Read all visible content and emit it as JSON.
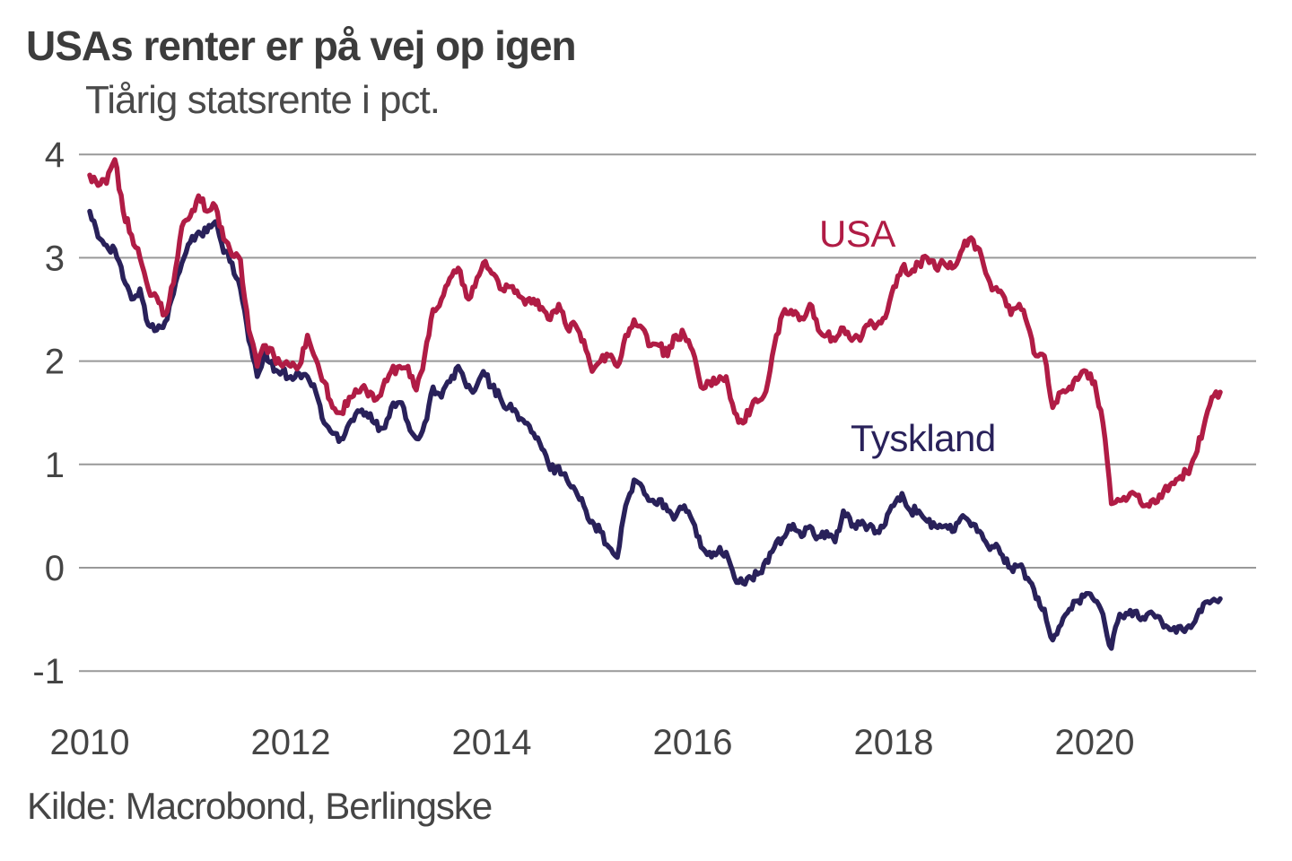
{
  "title": "USAs renter er på vej op igen",
  "subtitle": "Tiårig statsrente i pct.",
  "source": "Kilde: Macrobond, Berlingske",
  "colors": {
    "usa": "#B01C45",
    "germany": "#29215A",
    "grid": "#999999",
    "axis_text": "#454545"
  },
  "chart_data": {
    "type": "line",
    "title": "USAs renter er på vej op igen",
    "subtitle": "Tiårig statsrente i pct.",
    "xlabel": "",
    "ylabel": "Tiårig statsrente i pct.",
    "x_start_year": 2010,
    "x_points_per_year": 12,
    "x_end_year": 2021.25,
    "x_ticks": [
      2010,
      2012,
      2014,
      2016,
      2018,
      2020
    ],
    "y_ticks": [
      4,
      3,
      2,
      1,
      0,
      -1
    ],
    "ylim": [
      -1.35,
      4.35
    ],
    "grid": "horizontal",
    "legend_position": "inline-labels",
    "series": [
      {
        "name": "Tyskland",
        "color": "#29215A",
        "values": [
          3.45,
          3.2,
          3.12,
          3.08,
          2.8,
          2.6,
          2.7,
          2.35,
          2.3,
          2.38,
          2.65,
          2.95,
          3.15,
          3.25,
          3.25,
          3.35,
          3.05,
          2.95,
          2.7,
          2.2,
          1.85,
          2.1,
          1.9,
          1.9,
          1.85,
          1.88,
          1.85,
          1.7,
          1.4,
          1.3,
          1.25,
          1.4,
          1.52,
          1.5,
          1.4,
          1.35,
          1.55,
          1.6,
          1.4,
          1.25,
          1.4,
          1.75,
          1.65,
          1.8,
          1.95,
          1.75,
          1.72,
          1.9,
          1.75,
          1.65,
          1.55,
          1.5,
          1.4,
          1.3,
          1.15,
          0.95,
          0.98,
          0.85,
          0.75,
          0.6,
          0.45,
          0.35,
          0.2,
          0.1,
          0.6,
          0.85,
          0.78,
          0.65,
          0.66,
          0.55,
          0.5,
          0.6,
          0.45,
          0.2,
          0.15,
          0.15,
          0.15,
          -0.1,
          -0.15,
          -0.1,
          -0.05,
          0.05,
          0.25,
          0.3,
          0.42,
          0.3,
          0.4,
          0.3,
          0.35,
          0.25,
          0.55,
          0.4,
          0.42,
          0.4,
          0.35,
          0.42,
          0.6,
          0.72,
          0.55,
          0.55,
          0.45,
          0.4,
          0.4,
          0.35,
          0.48,
          0.45,
          0.35,
          0.25,
          0.2,
          0.12,
          0.0,
          0.02,
          -0.1,
          -0.3,
          -0.4,
          -0.7,
          -0.55,
          -0.4,
          -0.32,
          -0.25,
          -0.32,
          -0.45,
          -0.78,
          -0.45,
          -0.45,
          -0.42,
          -0.5,
          -0.45,
          -0.52,
          -0.6,
          -0.57,
          -0.58,
          -0.52,
          -0.35,
          -0.32,
          -0.3
        ]
      },
      {
        "name": "USA",
        "color": "#B01C45",
        "values": [
          3.8,
          3.7,
          3.72,
          3.95,
          3.45,
          3.22,
          3.0,
          2.7,
          2.62,
          2.45,
          2.75,
          3.3,
          3.4,
          3.6,
          3.45,
          3.5,
          3.18,
          3.02,
          2.98,
          2.3,
          1.95,
          2.15,
          2.05,
          1.95,
          1.95,
          1.95,
          2.25,
          2.02,
          1.8,
          1.55,
          1.5,
          1.65,
          1.7,
          1.72,
          1.62,
          1.75,
          1.9,
          1.95,
          1.95,
          1.72,
          2.05,
          2.5,
          2.6,
          2.8,
          2.9,
          2.62,
          2.72,
          2.95,
          2.85,
          2.7,
          2.72,
          2.68,
          2.55,
          2.6,
          2.52,
          2.4,
          2.55,
          2.32,
          2.35,
          2.2,
          1.9,
          2.0,
          2.05,
          1.95,
          2.25,
          2.4,
          2.32,
          2.15,
          2.15,
          2.05,
          2.25,
          2.25,
          2.1,
          1.75,
          1.8,
          1.8,
          1.85,
          1.5,
          1.4,
          1.55,
          1.62,
          1.8,
          2.25,
          2.5,
          2.45,
          2.42,
          2.55,
          2.3,
          2.25,
          2.2,
          2.32,
          2.2,
          2.2,
          2.35,
          2.35,
          2.42,
          2.72,
          2.9,
          2.85,
          2.95,
          3.0,
          2.9,
          2.95,
          2.9,
          3.05,
          3.18,
          3.1,
          2.85,
          2.7,
          2.65,
          2.45,
          2.55,
          2.35,
          2.05,
          2.05,
          1.55,
          1.7,
          1.75,
          1.82,
          1.9,
          1.8,
          1.4,
          0.62,
          0.65,
          0.68,
          0.7,
          0.6,
          0.66,
          0.68,
          0.8,
          0.86,
          0.92,
          1.08,
          1.35,
          1.65,
          1.7
        ]
      }
    ]
  }
}
